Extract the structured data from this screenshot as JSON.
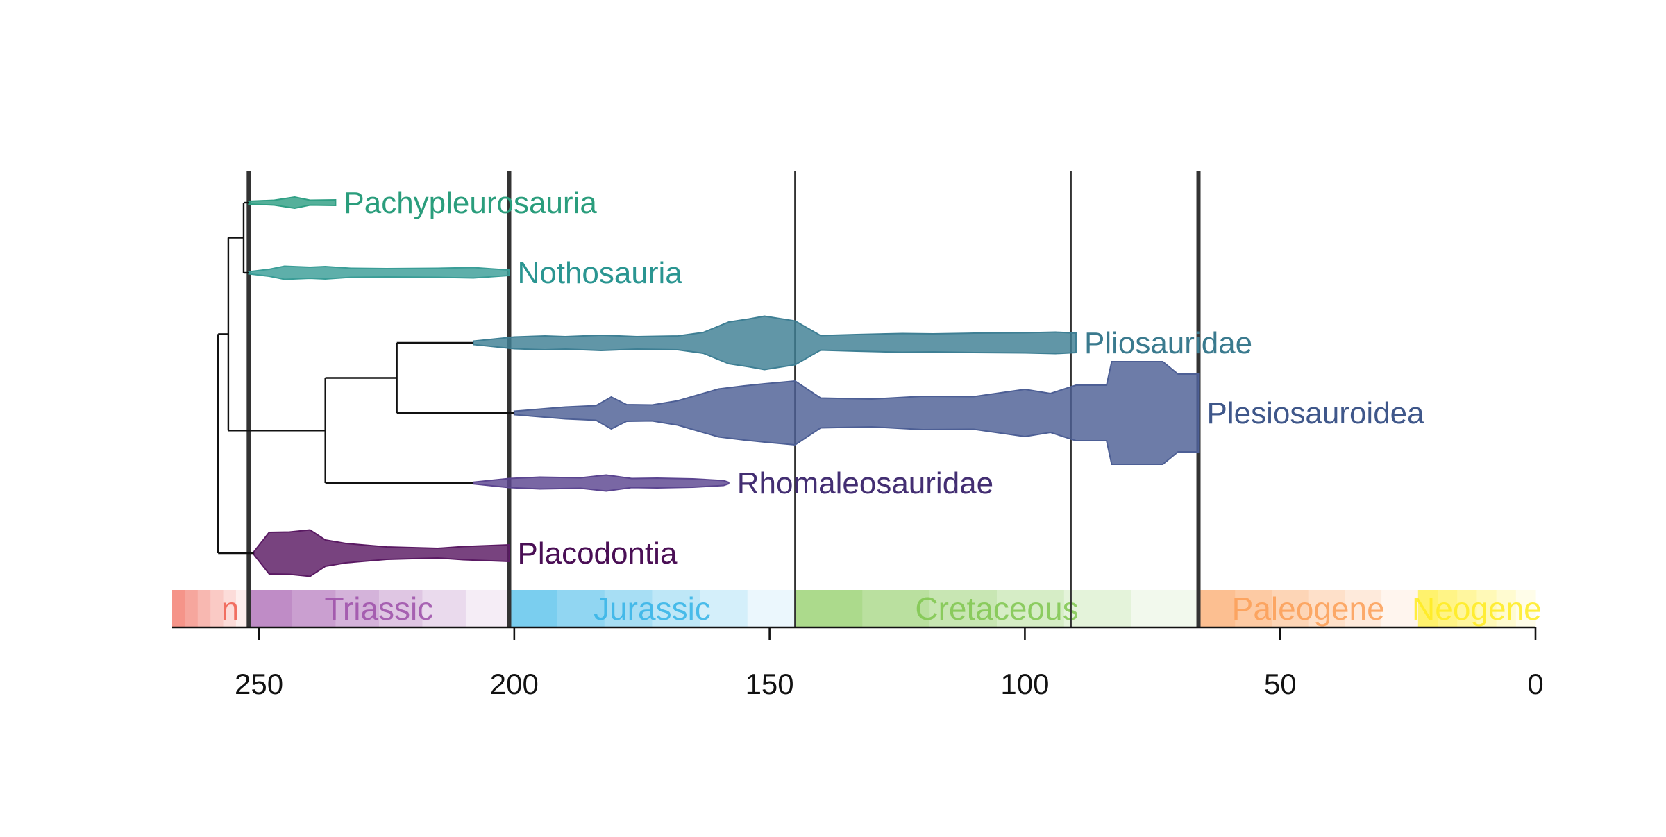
{
  "chart_data": {
    "type": "area",
    "title": "",
    "xlabel": "",
    "ylabel": "",
    "x_axis": {
      "reversed": true,
      "ticks": [
        250,
        200,
        150,
        100,
        50,
        0
      ],
      "tick_labels": [
        "250",
        "200",
        "150",
        "100",
        "50",
        "0"
      ],
      "xlim": [
        267,
        0
      ]
    },
    "boundaries": [
      {
        "age": 252,
        "style": "bold"
      },
      {
        "age": 201,
        "style": "bold"
      },
      {
        "age": 145,
        "style": "thin"
      },
      {
        "age": 91,
        "style": "thin"
      },
      {
        "age": 66,
        "style": "bold"
      }
    ],
    "periods": [
      {
        "name": "Permian",
        "label": "n",
        "start": 267,
        "end": 252,
        "color": "#ef5a4a"
      },
      {
        "name": "Triassic",
        "label": "Triassic",
        "start": 252,
        "end": 201,
        "color": "#9c4ea8"
      },
      {
        "name": "Jurassic",
        "label": "Jurassic",
        "start": 201,
        "end": 145,
        "color": "#33b3e6"
      },
      {
        "name": "Cretaceous",
        "label": "Cretaceous",
        "start": 145,
        "end": 66,
        "color": "#7fc64e"
      },
      {
        "name": "Paleogene",
        "label": "Paleogene",
        "start": 66,
        "end": 23,
        "color": "#fb9d55"
      },
      {
        "name": "Neogene",
        "label": "Neogene",
        "start": 23,
        "end": 0,
        "color": "#ffeb1e"
      }
    ],
    "series": [
      {
        "name": "Pachypleurosauria",
        "color": "#2f9f84",
        "label_color": "#2a9d7c",
        "profile": [
          [
            252,
            0.8
          ],
          [
            247,
            1.4
          ],
          [
            243,
            3.2
          ],
          [
            240,
            1.4
          ],
          [
            235,
            1.6
          ]
        ]
      },
      {
        "name": "Nothosauria",
        "color": "#3a9d97",
        "label_color": "#2a9591",
        "profile": [
          [
            252,
            0.6
          ],
          [
            248,
            2.0
          ],
          [
            245,
            3.8
          ],
          [
            240,
            3.2
          ],
          [
            237,
            3.6
          ],
          [
            232,
            2.6
          ],
          [
            225,
            2.4
          ],
          [
            215,
            2.6
          ],
          [
            208,
            3.0
          ],
          [
            201,
            1.6
          ]
        ]
      },
      {
        "name": "Pliosauridae",
        "color": "#3e7f94",
        "label_color": "#3a7a8e",
        "profile": [
          [
            208,
            1.0
          ],
          [
            200,
            3.4
          ],
          [
            194,
            4.0
          ],
          [
            190,
            3.6
          ],
          [
            183,
            4.4
          ],
          [
            176,
            3.6
          ],
          [
            168,
            4.0
          ],
          [
            163,
            6.0
          ],
          [
            158,
            12.0
          ],
          [
            154,
            13.8
          ],
          [
            151,
            15.4
          ],
          [
            145,
            12.6
          ],
          [
            140,
            4.2
          ],
          [
            133,
            4.8
          ],
          [
            124,
            5.4
          ],
          [
            118,
            5.2
          ],
          [
            110,
            5.6
          ],
          [
            100,
            5.8
          ],
          [
            94,
            6.2
          ],
          [
            90,
            5.6
          ]
        ]
      },
      {
        "name": "Plesiosauroidea",
        "color": "#4d5f95",
        "label_color": "#3f578a",
        "profile": [
          [
            200,
            1.0
          ],
          [
            190,
            3.4
          ],
          [
            184,
            4.2
          ],
          [
            181,
            9.2
          ],
          [
            178,
            4.8
          ],
          [
            173,
            4.6
          ],
          [
            168,
            7.0
          ],
          [
            160,
            13.8
          ],
          [
            155,
            15.6
          ],
          [
            151,
            16.8
          ],
          [
            145,
            18.4
          ],
          [
            140,
            8.6
          ],
          [
            130,
            8.0
          ],
          [
            120,
            9.6
          ],
          [
            110,
            9.4
          ],
          [
            100,
            13.6
          ],
          [
            95,
            11.2
          ],
          [
            90,
            16.0
          ],
          [
            84,
            16.0
          ],
          [
            83,
            29.6
          ],
          [
            78,
            29.6
          ],
          [
            73,
            29.6
          ],
          [
            70,
            22.4
          ],
          [
            66,
            22.4
          ]
        ]
      },
      {
        "name": "Rhomaleosauridae",
        "color": "#5b4590",
        "label_color": "#432e72",
        "profile": [
          [
            208,
            0.5
          ],
          [
            201,
            2.6
          ],
          [
            195,
            3.4
          ],
          [
            187,
            3.0
          ],
          [
            182,
            4.6
          ],
          [
            177,
            2.6
          ],
          [
            172,
            2.8
          ],
          [
            165,
            2.4
          ],
          [
            159,
            1.4
          ],
          [
            158,
            0.4
          ]
        ]
      },
      {
        "name": "Placodontia",
        "color": "#5a1a63",
        "label_color": "#4a0f55",
        "profile": [
          [
            251,
            0.8
          ],
          [
            248,
            12.0
          ],
          [
            244,
            12.2
          ],
          [
            240,
            13.4
          ],
          [
            237,
            7.6
          ],
          [
            233,
            5.6
          ],
          [
            225,
            3.6
          ],
          [
            215,
            2.8
          ],
          [
            210,
            3.8
          ],
          [
            201,
            4.8
          ]
        ]
      }
    ],
    "tree": {
      "root": 258,
      "nodes": [
        {
          "id": "n1",
          "age": 256
        },
        {
          "id": "n2",
          "age": 253
        },
        {
          "id": "n3",
          "age": 237
        },
        {
          "id": "n4",
          "age": 223
        }
      ]
    }
  }
}
